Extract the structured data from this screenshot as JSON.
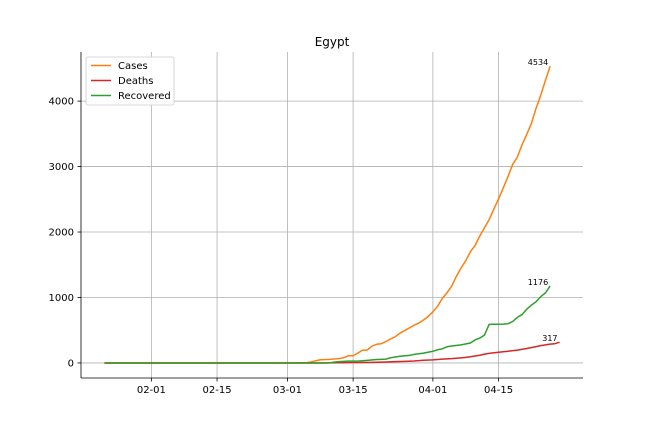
{
  "chart_data": {
    "type": "line",
    "title": "Egypt",
    "xlabel": "",
    "ylabel": "",
    "x_start": "01-22",
    "x_end": "04-26",
    "xlim_days": [
      -5,
      102
    ],
    "ylim": [
      -230,
      4750
    ],
    "xticks": [
      {
        "label": "02-01",
        "day": 10
      },
      {
        "label": "02-15",
        "day": 24
      },
      {
        "label": "03-01",
        "day": 39
      },
      {
        "label": "03-15",
        "day": 53
      },
      {
        "label": "04-01",
        "day": 70
      },
      {
        "label": "04-15",
        "day": 84
      }
    ],
    "yticks": [
      {
        "label": "0",
        "value": 0
      },
      {
        "label": "1000",
        "value": 1000
      },
      {
        "label": "2000",
        "value": 2000
      },
      {
        "label": "3000",
        "value": 3000
      },
      {
        "label": "4000",
        "value": 4000
      }
    ],
    "grid": true,
    "legend_position": "upper-left",
    "series": [
      {
        "name": "Cases",
        "color": "#ff7f0e",
        "end_label": "4534",
        "points": [
          [
            0,
            0
          ],
          [
            23,
            0
          ],
          [
            24,
            1
          ],
          [
            37,
            1
          ],
          [
            42,
            2
          ],
          [
            43,
            3
          ],
          [
            44,
            15
          ],
          [
            46,
            49
          ],
          [
            48,
            55
          ],
          [
            50,
            67
          ],
          [
            51,
            80
          ],
          [
            52,
            109
          ],
          [
            53,
            110
          ],
          [
            54,
            150
          ],
          [
            55,
            196
          ],
          [
            56,
            196
          ],
          [
            57,
            256
          ],
          [
            58,
            285
          ],
          [
            59,
            294
          ],
          [
            60,
            327
          ],
          [
            61,
            366
          ],
          [
            62,
            402
          ],
          [
            63,
            456
          ],
          [
            64,
            495
          ],
          [
            65,
            536
          ],
          [
            66,
            576
          ],
          [
            67,
            609
          ],
          [
            68,
            656
          ],
          [
            69,
            710
          ],
          [
            70,
            779
          ],
          [
            71,
            865
          ],
          [
            72,
            985
          ],
          [
            73,
            1070
          ],
          [
            74,
            1173
          ],
          [
            75,
            1322
          ],
          [
            76,
            1450
          ],
          [
            77,
            1560
          ],
          [
            78,
            1699
          ],
          [
            79,
            1794
          ],
          [
            80,
            1939
          ],
          [
            81,
            2065
          ],
          [
            82,
            2190
          ],
          [
            83,
            2350
          ],
          [
            84,
            2505
          ],
          [
            85,
            2673
          ],
          [
            86,
            2844
          ],
          [
            87,
            3032
          ],
          [
            88,
            3144
          ],
          [
            89,
            3333
          ],
          [
            90,
            3490
          ],
          [
            91,
            3659
          ],
          [
            92,
            3891
          ],
          [
            93,
            4092
          ],
          [
            94,
            4319
          ],
          [
            95,
            4534
          ]
        ]
      },
      {
        "name": "Deaths",
        "color": "#d62728",
        "end_label": "317",
        "points": [
          [
            0,
            0
          ],
          [
            46,
            0
          ],
          [
            47,
            1
          ],
          [
            50,
            2
          ],
          [
            52,
            4
          ],
          [
            53,
            6
          ],
          [
            55,
            7
          ],
          [
            57,
            9
          ],
          [
            58,
            10
          ],
          [
            60,
            14
          ],
          [
            62,
            20
          ],
          [
            64,
            24
          ],
          [
            66,
            30
          ],
          [
            68,
            41
          ],
          [
            70,
            46
          ],
          [
            72,
            58
          ],
          [
            74,
            66
          ],
          [
            76,
            78
          ],
          [
            77,
            85
          ],
          [
            78,
            94
          ],
          [
            80,
            118
          ],
          [
            81,
            135
          ],
          [
            82,
            146
          ],
          [
            84,
            164
          ],
          [
            86,
            178
          ],
          [
            88,
            196
          ],
          [
            90,
            220
          ],
          [
            92,
            250
          ],
          [
            93,
            264
          ],
          [
            95,
            287
          ],
          [
            96,
            294
          ],
          [
            97,
            317
          ]
        ]
      },
      {
        "name": "Recovered",
        "color": "#2ca02c",
        "end_label": "1176",
        "points": [
          [
            0,
            0
          ],
          [
            47,
            0
          ],
          [
            48,
            1
          ],
          [
            49,
            12
          ],
          [
            50,
            21
          ],
          [
            52,
            27
          ],
          [
            54,
            28
          ],
          [
            56,
            40
          ],
          [
            58,
            52
          ],
          [
            60,
            58
          ],
          [
            61,
            80
          ],
          [
            63,
            102
          ],
          [
            65,
            116
          ],
          [
            66,
            130
          ],
          [
            68,
            150
          ],
          [
            70,
            179
          ],
          [
            71,
            201
          ],
          [
            72,
            216
          ],
          [
            73,
            247
          ],
          [
            74,
            258
          ],
          [
            76,
            276
          ],
          [
            78,
            305
          ],
          [
            79,
            353
          ],
          [
            80,
            380
          ],
          [
            81,
            426
          ],
          [
            82,
            590
          ],
          [
            83,
            591
          ],
          [
            85,
            593
          ],
          [
            86,
            598
          ],
          [
            87,
            633
          ],
          [
            88,
            696
          ],
          [
            89,
            739
          ],
          [
            90,
            821
          ],
          [
            91,
            883
          ],
          [
            92,
            935
          ],
          [
            93,
            1014
          ],
          [
            94,
            1070
          ],
          [
            95,
            1176
          ]
        ]
      }
    ]
  }
}
